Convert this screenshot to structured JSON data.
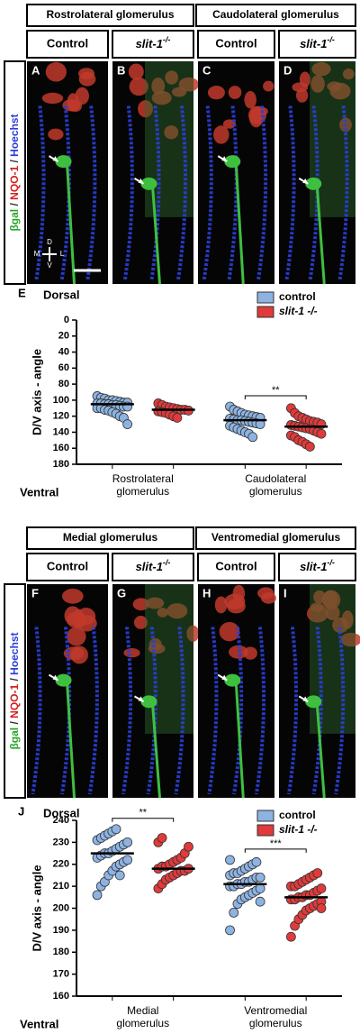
{
  "figure_top": {
    "headers": [
      "Rostrolateral glomerulus",
      "Caudolateral glomerulus"
    ],
    "columns": [
      "Control",
      {
        "gene": "slit-1",
        "genotype": "-/-"
      },
      "Control",
      {
        "gene": "slit-1",
        "genotype": "-/-"
      }
    ],
    "letters": [
      "A",
      "B",
      "C",
      "D"
    ],
    "stain": [
      "βgal",
      " / ",
      "NQO-1",
      " / ",
      "Hoechst"
    ],
    "orientation": [
      "D",
      "M",
      "L",
      "V"
    ]
  },
  "figure_bottom": {
    "headers": [
      "Medial glomerulus",
      "Ventromedial glomerulus"
    ],
    "columns": [
      "Control",
      {
        "gene": "slit-1",
        "genotype": "-/-"
      },
      "Control",
      {
        "gene": "slit-1",
        "genotype": "-/-"
      }
    ],
    "letters": [
      "F",
      "G",
      "H",
      "I"
    ],
    "stain": [
      "βgal",
      " / ",
      "NQO-1",
      " / ",
      "Hoechst"
    ]
  },
  "chart_data": [
    {
      "type": "strip",
      "panel_label": "E",
      "top_label": "Dorsal",
      "bottom_label": "Ventral",
      "y_label": "D/V axis - angle",
      "categories": [
        [
          "Rostrolateral",
          "glomerulus"
        ],
        [
          "Caudolateral",
          "glomerulus"
        ]
      ],
      "ylim": [
        180,
        0
      ],
      "yticks": [
        0,
        20,
        40,
        60,
        80,
        100,
        120,
        140,
        160,
        180
      ],
      "legend": "top-right",
      "series": [
        {
          "name": "control",
          "color": "#8db3e2",
          "values": [
            [
              95,
              97,
              98,
              100,
              100,
              101,
              102,
              103,
              103,
              104,
              104,
              105,
              105,
              106,
              106,
              107,
              108,
              108,
              110,
              110,
              112,
              113,
              115,
              117,
              120,
              122,
              130
            ],
            [
              108,
              112,
              114,
              116,
              118,
              119,
              120,
              121,
              122,
              123,
              124,
              125,
              125,
              126,
              127,
              128,
              129,
              130,
              132,
              134,
              136,
              138,
              140,
              142,
              146
            ]
          ],
          "medians": [
            105,
            125
          ]
        },
        {
          "name": "slit-1 -/-",
          "color": "#e03a3a",
          "values": [
            [
              104,
              106,
              108,
              109,
              110,
              111,
              112,
              112,
              113,
              114,
              115,
              116,
              118,
              120,
              122
            ],
            [
              110,
              116,
              120,
              122,
              124,
              126,
              127,
              128,
              130,
              131,
              132,
              133,
              134,
              135,
              136,
              138,
              140,
              142,
              144,
              146,
              150,
              152,
              155,
              158
            ]
          ],
          "medians": [
            112,
            133
          ]
        }
      ],
      "annotations": [
        {
          "text": "**",
          "category": 1
        }
      ]
    },
    {
      "type": "strip",
      "panel_label": "J",
      "top_label": "Dorsal",
      "bottom_label": "Ventral",
      "y_label": "D/V axis - angle",
      "categories": [
        [
          "Medial",
          "glomerulus"
        ],
        [
          "Ventromedial",
          "glomerulus"
        ]
      ],
      "ylim": [
        160,
        240
      ],
      "yticks": [
        160,
        170,
        180,
        190,
        200,
        210,
        220,
        230,
        240
      ],
      "legend": "top-right",
      "series": [
        {
          "name": "control",
          "color": "#8db3e2",
          "values": [
            [
              206,
              210,
              212,
              215,
              217,
              219,
              220,
              221,
              222,
              223,
              224,
              225,
              225,
              226,
              227,
              228,
              229,
              230,
              231,
              232,
              233,
              234,
              235,
              236,
              215
            ],
            [
              190,
              198,
              202,
              204,
              205,
              206,
              207,
              208,
              209,
              210,
              210,
              211,
              211,
              212,
              212,
              213,
              214,
              214,
              215,
              216,
              216,
              217,
              218,
              219,
              220,
              221,
              203,
              222
            ]
          ],
          "medians": [
            225,
            211
          ]
        },
        {
          "name": "slit-1 -/-",
          "color": "#e03a3a",
          "values": [
            [
              209,
              211,
              213,
              214,
              215,
              216,
              217,
              217,
              218,
              218,
              219,
              219,
              220,
              221,
              222,
              223,
              225,
              228,
              230,
              232
            ],
            [
              187,
              192,
              195,
              197,
              199,
              200,
              201,
              202,
              203,
              204,
              204,
              205,
              205,
              206,
              206,
              207,
              208,
              209,
              210,
              210,
              211,
              212,
              213,
              214,
              215,
              216,
              200
            ]
          ],
          "medians": [
            218,
            205
          ]
        }
      ],
      "annotations": [
        {
          "text": "**",
          "category": 0
        },
        {
          "text": "***",
          "category": 1
        }
      ]
    }
  ]
}
